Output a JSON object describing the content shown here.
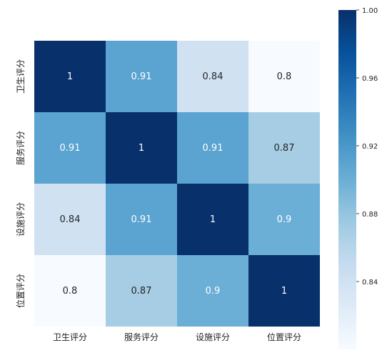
{
  "chart_data": {
    "type": "heatmap",
    "title": "",
    "xlabel": "",
    "ylabel": "",
    "x_categories": [
      "卫生评分",
      "服务评分",
      "设施评分",
      "位置评分"
    ],
    "y_categories": [
      "卫生评分",
      "服务评分",
      "设施评分",
      "位置评分"
    ],
    "values": [
      [
        1,
        0.91,
        0.84,
        0.8
      ],
      [
        0.91,
        1,
        0.91,
        0.87
      ],
      [
        0.84,
        0.91,
        1,
        0.9
      ],
      [
        0.8,
        0.87,
        0.9,
        1
      ]
    ],
    "cell_labels": [
      [
        "1",
        "0.91",
        "0.84",
        "0.8"
      ],
      [
        "0.91",
        "1",
        "0.91",
        "0.87"
      ],
      [
        "0.84",
        "0.91",
        "1",
        "0.9"
      ],
      [
        "0.8",
        "0.87",
        "0.9",
        "1"
      ]
    ],
    "colormap": "Blues",
    "colorbar": {
      "range": [
        0.8,
        1.0
      ],
      "ticks": [
        "0.84",
        "0.88",
        "0.92",
        "0.96",
        "1.00"
      ],
      "tick_values": [
        0.84,
        0.88,
        0.92,
        0.96,
        1.0
      ],
      "placement": "right"
    },
    "grid": false
  }
}
